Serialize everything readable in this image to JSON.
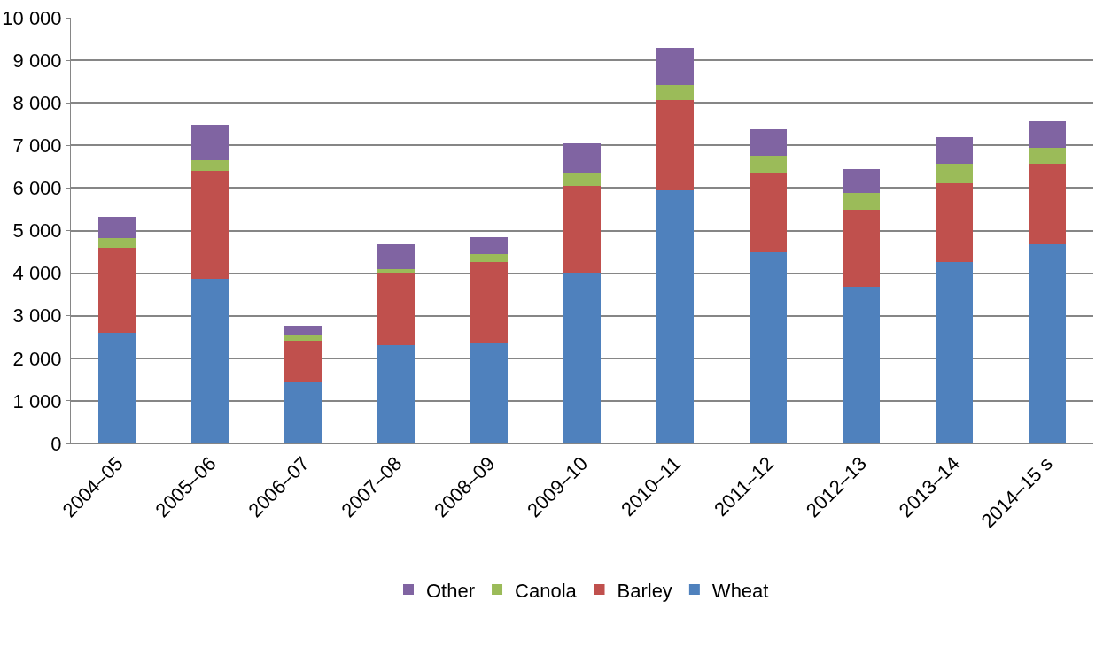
{
  "chart_data": {
    "type": "bar",
    "stacked": true,
    "categories": [
      "2004–05",
      "2005–06",
      "2006–07",
      "2007–08",
      "2008–09",
      "2009–10",
      "2010–11",
      "2011–12",
      "2012–13",
      "2013–14",
      "2014–15 s"
    ],
    "series": [
      {
        "name": "Wheat",
        "color": "#4f81bd",
        "values": [
          2600,
          3860,
          1440,
          2310,
          2360,
          3990,
          5950,
          4500,
          3690,
          4270,
          4670
        ]
      },
      {
        "name": "Barley",
        "color": "#c0504d",
        "values": [
          2000,
          2550,
          980,
          1680,
          1910,
          2060,
          2120,
          1850,
          1790,
          1840,
          1910
        ]
      },
      {
        "name": "Canola",
        "color": "#9bbb59",
        "values": [
          230,
          240,
          130,
          110,
          170,
          300,
          360,
          400,
          400,
          470,
          360
        ]
      },
      {
        "name": "Other",
        "color": "#8064a2",
        "values": [
          490,
          840,
          210,
          570,
          400,
          700,
          870,
          640,
          570,
          620,
          620
        ]
      }
    ],
    "ylim": [
      0,
      10000
    ],
    "yticks": [
      0,
      {
        "value": 1000,
        "label": "1 000"
      },
      {
        "value": 2000,
        "label": "2 000"
      },
      {
        "value": 3000,
        "label": "3 000"
      },
      {
        "value": 4000,
        "label": "4 000"
      },
      {
        "value": 5000,
        "label": "5 000"
      },
      {
        "value": 6000,
        "label": "6 000"
      },
      {
        "value": 7000,
        "label": "7 000"
      },
      {
        "value": 8000,
        "label": "8 000"
      },
      {
        "value": 9000,
        "label": "9 000"
      },
      {
        "value": 10000,
        "label": "10 000"
      }
    ],
    "grid": "y",
    "legend": "bottom"
  }
}
